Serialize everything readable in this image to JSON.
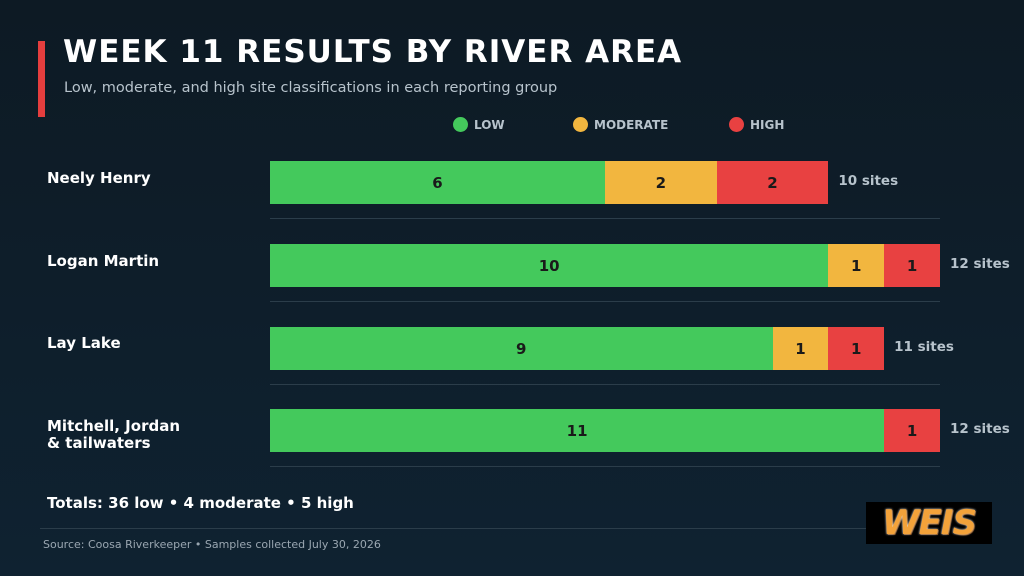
{
  "header": {
    "title": "WEEK 11 RESULTS BY RIVER AREA",
    "subtitle": "Low, moderate, and high site classifications in each reporting group"
  },
  "legend": [
    {
      "label": "LOW",
      "color": "#44c95c"
    },
    {
      "label": "MODERATE",
      "color": "#f2b63f"
    },
    {
      "label": "HIGH",
      "color": "#e84141"
    }
  ],
  "chart_data": {
    "type": "bar",
    "orientation": "horizontal",
    "stacked": true,
    "title": "WEEK 11 RESULTS BY RIVER AREA",
    "subtitle": "Low, moderate, and high site classifications in each reporting group",
    "categories": [
      "Neely Henry",
      "Logan Martin",
      "Lay Lake",
      "Mitchell, Jordan & tailwaters"
    ],
    "category_lines": [
      [
        "Neely Henry"
      ],
      [
        "Logan Martin"
      ],
      [
        "Lay Lake"
      ],
      [
        "Mitchell, Jordan",
        "& tailwaters"
      ]
    ],
    "series": [
      {
        "name": "LOW",
        "values": [
          6,
          10,
          9,
          11
        ],
        "color": "#44c95c"
      },
      {
        "name": "MODERATE",
        "values": [
          2,
          1,
          1,
          0
        ],
        "color": "#f2b63f"
      },
      {
        "name": "HIGH",
        "values": [
          2,
          1,
          1,
          1
        ],
        "color": "#e84141"
      }
    ],
    "totals": [
      "10 sites",
      "12 sites",
      "11 sites",
      "12 sites"
    ],
    "xlim": [
      0,
      12
    ],
    "legend_position": "top",
    "grid": false
  },
  "totals_text": "Totals: 36 low • 4 moderate • 5 high",
  "source": "Source: Coosa Riverkeeper • Samples collected July 30, 2026",
  "logo": {
    "text": "WEIS"
  }
}
